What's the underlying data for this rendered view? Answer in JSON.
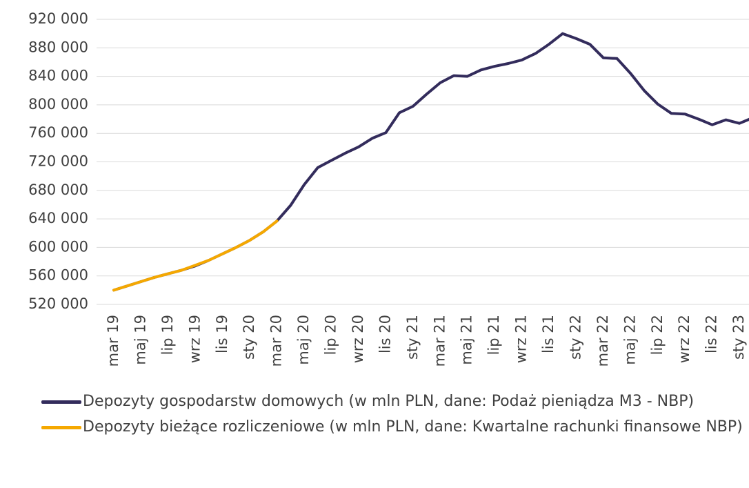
{
  "chart_data": {
    "type": "line",
    "categories": [
      "mar 19",
      null,
      "maj 19",
      null,
      "lip 19",
      null,
      "wrz 19",
      null,
      "lis 19",
      null,
      "sty 20",
      null,
      "mar 20",
      null,
      "maj 20",
      null,
      "lip 20",
      null,
      "wrz 20",
      null,
      "lis 20",
      null,
      "sty 21",
      null,
      "mar 21",
      null,
      "maj 21",
      null,
      "lip 21",
      null,
      "wrz 21",
      null,
      "lis 21",
      null,
      "sty 22",
      null,
      "mar 22",
      null,
      "maj 22",
      null,
      "lip 22",
      null,
      "wrz 22",
      null,
      "lis 22",
      null,
      "sty 23",
      null
    ],
    "series": [
      {
        "name": "Depozyty gospodarstw domowych (w mln PLN, dane: Podaż pieniądza M3 - NBP)",
        "color": "#332c5c",
        "values": [
          540000,
          546000,
          552000,
          558000,
          563000,
          568000,
          574000,
          582000,
          591000,
          600000,
          610000,
          622000,
          637000,
          659000,
          688000,
          712000,
          722000,
          732000,
          741000,
          753000,
          761000,
          789000,
          798000,
          815000,
          831000,
          841000,
          840000,
          849000,
          854000,
          858000,
          863000,
          872000,
          885000,
          900000,
          893000,
          885000,
          866000,
          865000,
          844000,
          820000,
          801000,
          788000,
          787000,
          780000,
          772000,
          779000,
          774000,
          782000
        ]
      },
      {
        "name": "Depozyty bieżące rozliczeniowe (w mln PLN, dane: Kwartalne rachunki finansowe NBP)",
        "color": "#f5a800",
        "values": [
          540000,
          546000,
          552000,
          558000,
          563000,
          568000,
          575000,
          582000,
          591000,
          600000,
          610000,
          622000,
          637000,
          null,
          null,
          null,
          null,
          null,
          null,
          null,
          null,
          null,
          null,
          null,
          null,
          null,
          null,
          null,
          null,
          null,
          null,
          null,
          null,
          null,
          null,
          null,
          null,
          null,
          null,
          null,
          null,
          null,
          null,
          null,
          null,
          null,
          null,
          null
        ]
      }
    ],
    "ylim": [
      520000,
      920000
    ],
    "yticks": [
      {
        "value": 520000,
        "label": "520 000"
      },
      {
        "value": 560000,
        "label": "560 000"
      },
      {
        "value": 600000,
        "label": "600 000"
      },
      {
        "value": 640000,
        "label": "640 000"
      },
      {
        "value": 680000,
        "label": "680 000"
      },
      {
        "value": 720000,
        "label": "720 000"
      },
      {
        "value": 760000,
        "label": "760 000"
      },
      {
        "value": 800000,
        "label": "800 000"
      },
      {
        "value": 840000,
        "label": "840 000"
      },
      {
        "value": 880000,
        "label": "880 000"
      },
      {
        "value": 920000,
        "label": "920 000"
      }
    ],
    "grid": true,
    "legend": "bottom"
  }
}
